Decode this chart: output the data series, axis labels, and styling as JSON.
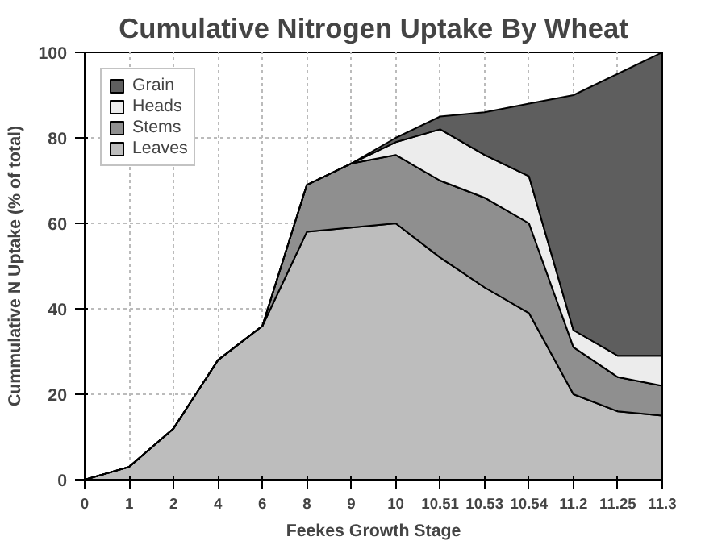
{
  "chart_data": {
    "type": "area",
    "stacked": true,
    "title": "Cumulative Nitrogen Uptake By Wheat",
    "xlabel": "Feekes Growth Stage",
    "ylabel": "Cummulative N Uptake (% of total)",
    "categories": [
      "0",
      "1",
      "2",
      "4",
      "6",
      "8",
      "9",
      "10",
      "10.51",
      "10.53",
      "10.54",
      "11.2",
      "11.25",
      "11.3"
    ],
    "series": [
      {
        "name": "Leaves",
        "color": "#bdbdbd",
        "values": [
          0,
          3,
          12,
          28,
          36,
          58,
          59,
          60,
          52,
          45,
          39,
          20,
          16,
          15
        ]
      },
      {
        "name": "Stems",
        "color": "#8f8f8f",
        "values": [
          0,
          0,
          0,
          0,
          0,
          11,
          15,
          16,
          18,
          21,
          21,
          11,
          8,
          7
        ]
      },
      {
        "name": "Heads",
        "color": "#ececec",
        "values": [
          0,
          0,
          0,
          0,
          0,
          0,
          0,
          3,
          12,
          10,
          11,
          4,
          5,
          7
        ]
      },
      {
        "name": "Grain",
        "color": "#5e5e5e",
        "values": [
          0,
          0,
          0,
          0,
          0,
          0,
          0,
          1,
          3,
          10,
          17,
          55,
          66,
          71
        ]
      }
    ],
    "ylim": [
      0,
      100
    ],
    "yticks": [
      0,
      20,
      40,
      60,
      80,
      100
    ],
    "grid": true,
    "legend": "top left"
  }
}
